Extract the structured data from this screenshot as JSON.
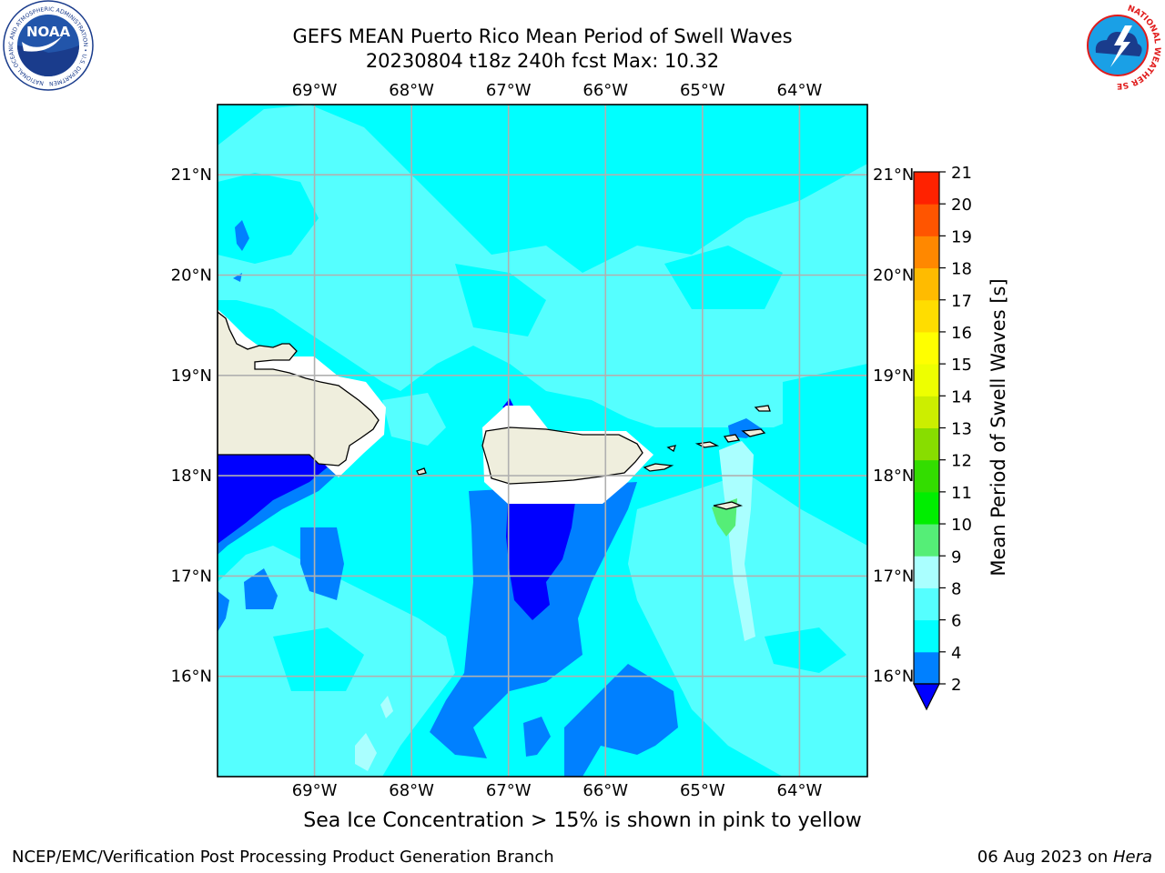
{
  "header": {
    "title_line1": "GEFS MEAN Puerto Rico Mean Period of Swell Waves",
    "title_line2": "20230804 t18z 240h fcst   Max: 10.32"
  },
  "logos": {
    "noaa": {
      "text": "NOAA",
      "ring_text": "NATIONAL OCEANIC AND ATMOSPHERIC ADMINISTRATION • U.S. DEPARTMENT OF COMMERCE"
    },
    "nws": {
      "ring_text": "NATIONAL WEATHER SERVICE"
    }
  },
  "map": {
    "lon_range": [
      -70.0,
      -63.3
    ],
    "lat_range": [
      15.0,
      21.7
    ],
    "lon_ticks": [
      "69°W",
      "68°W",
      "67°W",
      "66°W",
      "65°W",
      "64°W"
    ],
    "lat_ticks": [
      "21°N",
      "20°N",
      "19°N",
      "18°N",
      "17°N",
      "16°N"
    ],
    "grid": true,
    "land_color": "#efeedd",
    "background_fill_color": "#00ffff"
  },
  "colorbar": {
    "label": "Mean Period of Swell Waves [s]",
    "ticks": [
      "2",
      "4",
      "6",
      "8",
      "9",
      "10",
      "11",
      "12",
      "13",
      "14",
      "15",
      "16",
      "17",
      "18",
      "19",
      "20",
      "21"
    ],
    "colors": [
      "#0080ff",
      "#00ffff",
      "#55ffff",
      "#aaffff",
      "#55ee77",
      "#00ee00",
      "#33dd00",
      "#88dd00",
      "#ccee00",
      "#eeff00",
      "#ffff00",
      "#ffdd00",
      "#ffbb00",
      "#ff8800",
      "#ff5500",
      "#ff2200"
    ],
    "under_color": "#0000ff"
  },
  "caption": "Sea Ice Concentration > 15% is shown in pink to yellow",
  "footer": {
    "left": "NCEP/EMC/Verification Post Processing Product Generation Branch",
    "right_prefix": "06 Aug 2023 on ",
    "right_host": "Hera"
  }
}
